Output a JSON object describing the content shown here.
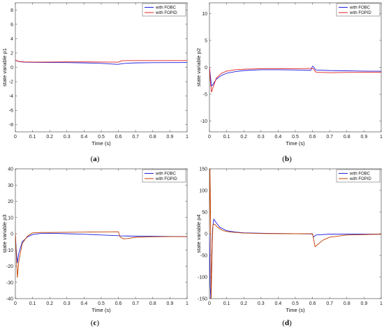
{
  "chart_data": [
    {
      "type": "line",
      "panel": "a",
      "caption": "(a)",
      "xlabel": "Time (s)",
      "ylabel": "state variable p1",
      "xlim": [
        0,
        1
      ],
      "ylim": [
        -9,
        9
      ],
      "xticks": [
        "0",
        "0.1",
        "0.2",
        "0.3",
        "0.4",
        "0.5",
        "0.6",
        "0.7",
        "0.8",
        "0.9",
        "1"
      ],
      "yticks": [
        "-8",
        "-6",
        "-4",
        "-2",
        "0",
        "2",
        "4",
        "6",
        "8"
      ],
      "ytick_values": [
        -8,
        -6,
        -4,
        -2,
        0,
        2,
        4,
        6,
        8
      ],
      "legend_position": "top-right",
      "colors": [
        "#1f1fe0",
        "#e02020"
      ],
      "series": [
        {
          "name": "with FOBC",
          "x": [
            0,
            0.02,
            0.05,
            0.1,
            0.2,
            0.3,
            0.4,
            0.5,
            0.59,
            0.6,
            0.62,
            0.65,
            0.7,
            0.8,
            0.9,
            1.0
          ],
          "y": [
            1.0,
            0.8,
            0.72,
            0.7,
            0.68,
            0.66,
            0.62,
            0.55,
            0.42,
            0.42,
            0.5,
            0.58,
            0.62,
            0.65,
            0.66,
            0.67
          ]
        },
        {
          "name": "with FOPID",
          "x": [
            0,
            0.02,
            0.05,
            0.1,
            0.2,
            0.3,
            0.4,
            0.5,
            0.59,
            0.6,
            0.62,
            0.65,
            0.7,
            0.8,
            0.9,
            1.0
          ],
          "y": [
            1.0,
            0.82,
            0.76,
            0.74,
            0.74,
            0.76,
            0.76,
            0.74,
            0.72,
            0.72,
            0.92,
            0.94,
            0.94,
            0.94,
            0.94,
            0.94
          ]
        }
      ]
    },
    {
      "type": "line",
      "panel": "b",
      "caption": "(b)",
      "xlabel": "Time (s)",
      "ylabel": "state variable p2",
      "xlim": [
        0,
        1
      ],
      "ylim": [
        -12,
        12
      ],
      "xticks": [
        "0",
        "0.1",
        "0.2",
        "0.3",
        "0.4",
        "0.5",
        "0.6",
        "0.7",
        "0.8",
        "0.9",
        "1"
      ],
      "yticks": [
        "-10",
        "-5",
        "0",
        "5",
        "10"
      ],
      "ytick_values": [
        -10,
        -5,
        0,
        5,
        10
      ],
      "legend_position": "top-right",
      "colors": [
        "#1f1fe0",
        "#e02020"
      ],
      "series": [
        {
          "name": "with FOBC",
          "x": [
            0,
            0.005,
            0.012,
            0.02,
            0.04,
            0.07,
            0.1,
            0.15,
            0.2,
            0.3,
            0.4,
            0.5,
            0.59,
            0.6,
            0.605,
            0.62,
            0.7,
            0.8,
            0.9,
            1.0
          ],
          "y": [
            0,
            -1.5,
            -3.5,
            -3.2,
            -2.2,
            -1.5,
            -1.1,
            -0.8,
            -0.6,
            -0.45,
            -0.45,
            -0.5,
            -0.55,
            0.2,
            0.1,
            -0.5,
            -0.6,
            -0.65,
            -0.7,
            -0.72
          ]
        },
        {
          "name": "with FOPID",
          "x": [
            0,
            0.005,
            0.012,
            0.02,
            0.04,
            0.07,
            0.1,
            0.15,
            0.2,
            0.3,
            0.4,
            0.5,
            0.59,
            0.6,
            0.605,
            0.62,
            0.7,
            0.8,
            0.9,
            1.0
          ],
          "y": [
            0,
            -2.5,
            -4.6,
            -3.8,
            -2.0,
            -1.1,
            -0.7,
            -0.45,
            -0.35,
            -0.25,
            -0.25,
            -0.25,
            -0.2,
            -0.2,
            -0.25,
            -0.9,
            -1.0,
            -0.95,
            -0.92,
            -0.9
          ]
        }
      ]
    },
    {
      "type": "line",
      "panel": "c",
      "caption": "(c)",
      "xlabel": "Time (s)",
      "ylabel": "state variable p3",
      "xlim": [
        0,
        1
      ],
      "ylim": [
        -40,
        40
      ],
      "xticks": [
        "0",
        "0.1",
        "0.2",
        "0.3",
        "0.4",
        "0.5",
        "0.6",
        "0.7",
        "0.8",
        "0.9",
        "1"
      ],
      "yticks": [
        "-40",
        "-30",
        "-20",
        "-10",
        "0",
        "10",
        "20",
        "30",
        "40"
      ],
      "ytick_values": [
        -40,
        -30,
        -20,
        -10,
        0,
        10,
        20,
        30,
        40
      ],
      "legend_position": "top-right",
      "colors": [
        "#1f1fe0",
        "#c04000"
      ],
      "series": [
        {
          "name": "with FOBC",
          "x": [
            0,
            0.005,
            0.012,
            0.02,
            0.04,
            0.07,
            0.1,
            0.15,
            0.2,
            0.3,
            0.4,
            0.5,
            0.6,
            0.61,
            0.65,
            0.7,
            0.8,
            0.9,
            1.0
          ],
          "y": [
            0,
            -10,
            -18,
            -12,
            -5,
            -2,
            -0.5,
            0.2,
            0.3,
            0.0,
            -0.3,
            -0.8,
            -1.2,
            -1.3,
            -1.4,
            -1.5,
            -1.6,
            -1.7,
            -1.8
          ]
        },
        {
          "name": "with FOPID",
          "x": [
            0,
            0.005,
            0.012,
            0.02,
            0.04,
            0.07,
            0.1,
            0.15,
            0.2,
            0.3,
            0.4,
            0.5,
            0.6,
            0.61,
            0.63,
            0.65,
            0.7,
            0.8,
            0.9,
            1.0
          ],
          "y": [
            0,
            -12,
            -27,
            -17,
            -6,
            -1.5,
            0.5,
            0.8,
            0.8,
            0.9,
            1.0,
            1.1,
            1.2,
            -2.0,
            -3.2,
            -3.0,
            -2.2,
            -1.9,
            -1.8,
            -1.8
          ]
        }
      ]
    },
    {
      "type": "line",
      "panel": "d",
      "caption": "(d)",
      "xlabel": "Time (s)",
      "ylabel": "state variable p4",
      "xlim": [
        0,
        1
      ],
      "ylim": [
        -150,
        150
      ],
      "xticks": [
        "0",
        "0.1",
        "0.2",
        "0.3",
        "0.4",
        "0.5",
        "0.6",
        "0.7",
        "0.8",
        "0.9",
        "1"
      ],
      "yticks": [
        "-150",
        "-100",
        "-50",
        "0",
        "50",
        "100",
        "150"
      ],
      "ytick_values": [
        -150,
        -100,
        -50,
        0,
        50,
        100,
        150
      ],
      "legend_position": "top-right",
      "colors": [
        "#1f1fe0",
        "#c04000"
      ],
      "series": [
        {
          "name": "with FOBC",
          "x": [
            0,
            0.004,
            0.008,
            0.012,
            0.018,
            0.025,
            0.04,
            0.06,
            0.1,
            0.15,
            0.2,
            0.3,
            0.4,
            0.5,
            0.59,
            0.6,
            0.605,
            0.62,
            0.7,
            0.8,
            0.9,
            1.0
          ],
          "y": [
            0,
            -120,
            -150,
            -100,
            10,
            34,
            25,
            15,
            7,
            4,
            2,
            1,
            0.5,
            0,
            -0.5,
            -1,
            -8,
            -3,
            -1,
            -1,
            -1,
            -1
          ]
        },
        {
          "name": "with FOPID",
          "x": [
            0,
            0.003,
            0.006,
            0.01,
            0.014,
            0.02,
            0.03,
            0.05,
            0.08,
            0.12,
            0.2,
            0.3,
            0.4,
            0.5,
            0.6,
            0.605,
            0.615,
            0.63,
            0.66,
            0.7,
            0.8,
            0.9,
            1.0
          ],
          "y": [
            0,
            150,
            60,
            -150,
            -60,
            20,
            22,
            14,
            7,
            4,
            1.5,
            0.5,
            0.2,
            0,
            0,
            -10,
            -30,
            -25,
            -15,
            -8,
            -3,
            -2,
            -1
          ]
        }
      ]
    }
  ]
}
